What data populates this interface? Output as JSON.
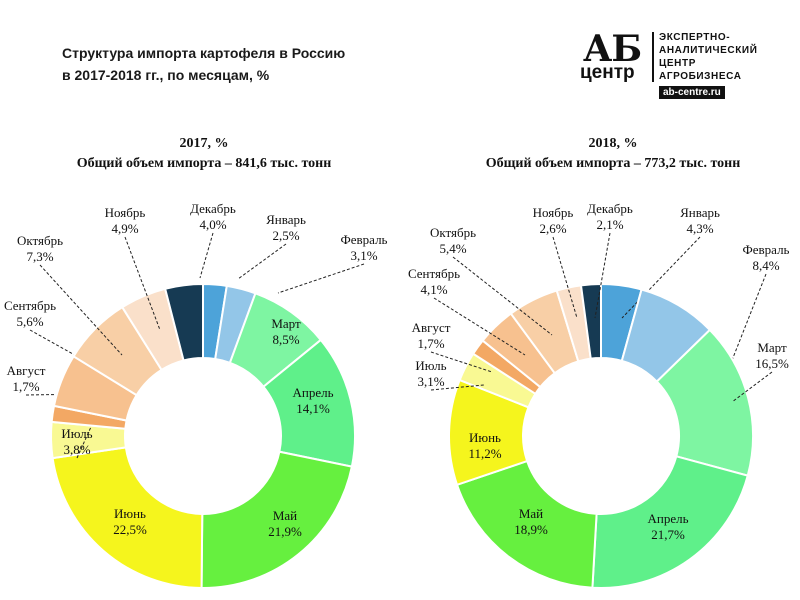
{
  "title": {
    "line1": "Структура  импорта картофеля в Россию",
    "line2": "в 2017-2018 гг.,  по месяцам, %"
  },
  "logo": {
    "ab": "АБ",
    "centr": "центр",
    "line1": "ЭКСПЕРТНО-",
    "line2": "АНАЛИТИЧЕСКИЙ",
    "line3": "ЦЕНТР",
    "line4": "АГРОБИЗНЕСА",
    "url": "ab-centre.ru"
  },
  "colors": {
    "Январь": "#4da3d9",
    "Февраль": "#93c6e8",
    "Март": "#7ef5a2",
    "Апрель": "#5ff08a",
    "Май": "#66f03f",
    "Июнь": "#f5f51d",
    "Июль": "#f9f993",
    "Август": "#f3a864",
    "Сентябрь": "#f7c18f",
    "Октябрь": "#f8cfa6",
    "Ноябрь": "#fae0ca",
    "Декабрь": "#163a53"
  },
  "chart_data": [
    {
      "type": "pie",
      "title": "2017, %",
      "subtitle": "Общий объем импорта – 841,6 тыс. тонн",
      "start": "top",
      "direction": "clockwise",
      "slices": [
        {
          "label": "Январь",
          "value": 2.5,
          "value_label": "2,5%"
        },
        {
          "label": "Февраль",
          "value": 3.1,
          "value_label": "3,1%"
        },
        {
          "label": "Март",
          "value": 8.5,
          "value_label": "8,5%"
        },
        {
          "label": "Апрель",
          "value": 14.1,
          "value_label": "14,1%"
        },
        {
          "label": "Май",
          "value": 21.9,
          "value_label": "21,9%"
        },
        {
          "label": "Июнь",
          "value": 22.5,
          "value_label": "22,5%"
        },
        {
          "label": "Июль",
          "value": 3.8,
          "value_label": "3,8%"
        },
        {
          "label": "Август",
          "value": 1.7,
          "value_label": "1,7%"
        },
        {
          "label": "Сентябрь",
          "value": 5.6,
          "value_label": "5,6%"
        },
        {
          "label": "Октябрь",
          "value": 7.3,
          "value_label": "7,3%"
        },
        {
          "label": "Ноябрь",
          "value": 4.9,
          "value_label": "4,9%"
        },
        {
          "label": "Декабрь",
          "value": 4.0,
          "value_label": "4,0%"
        }
      ]
    },
    {
      "type": "pie",
      "title": "2018, %",
      "subtitle": "Общий объем импорта – 773,2 тыс. тонн",
      "start": "top",
      "direction": "clockwise",
      "slices": [
        {
          "label": "Январь",
          "value": 4.3,
          "value_label": "4,3%"
        },
        {
          "label": "Февраль",
          "value": 8.4,
          "value_label": "8,4%"
        },
        {
          "label": "Март",
          "value": 16.5,
          "value_label": "16,5%"
        },
        {
          "label": "Апрель",
          "value": 21.7,
          "value_label": "21,7%"
        },
        {
          "label": "Май",
          "value": 18.9,
          "value_label": "18,9%"
        },
        {
          "label": "Июнь",
          "value": 11.2,
          "value_label": "11,2%"
        },
        {
          "label": "Июль",
          "value": 3.1,
          "value_label": "3,1%"
        },
        {
          "label": "Август",
          "value": 1.7,
          "value_label": "1,7%"
        },
        {
          "label": "Сентябрь",
          "value": 4.1,
          "value_label": "4,1%"
        },
        {
          "label": "Октябрь",
          "value": 5.4,
          "value_label": "5,4%"
        },
        {
          "label": "Ноябрь",
          "value": 2.6,
          "value_label": "2,6%"
        },
        {
          "label": "Декабрь",
          "value": 2.1,
          "value_label": "2,1%"
        }
      ]
    }
  ]
}
